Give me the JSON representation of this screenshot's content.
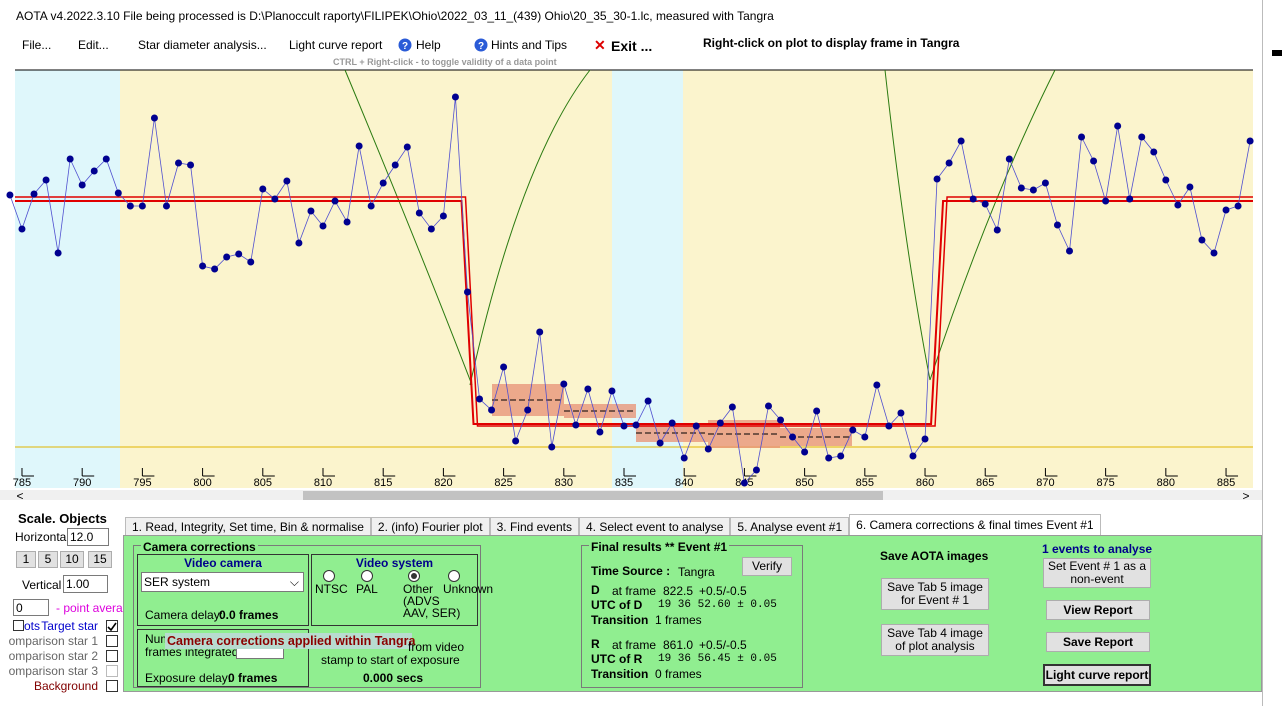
{
  "title_bar": "AOTA v4.2022.3.10   File being processed is D:\\Planoccult raporty\\FILIPEK\\Ohio\\2022_03_11_(439) Ohio\\20_35_30-1.lc, measured with Tangra",
  "menu": [
    "File...",
    "Edit...",
    "Star diameter analysis...",
    "Light curve report",
    "Help",
    "Hints and Tips",
    "Exit ..."
  ],
  "menu_note": "Right-click on plot to display frame in Tangra",
  "hint": "CTRL + Right-click  -  to toggle validity of a data point",
  "plot": {
    "x": [
      784,
      785,
      786,
      787,
      788,
      789,
      790,
      791,
      792,
      793,
      794,
      795,
      796,
      797,
      798,
      799,
      800,
      801,
      802,
      803,
      804,
      805,
      806,
      807,
      808,
      809,
      810,
      811,
      812,
      813,
      814,
      815,
      816,
      817,
      818,
      819,
      820,
      821,
      822,
      823,
      824,
      825,
      826,
      827,
      828,
      829,
      830,
      831,
      832,
      833,
      834,
      835,
      836,
      837,
      838,
      839,
      840,
      841,
      842,
      843,
      844,
      845,
      846,
      847,
      848,
      849,
      850,
      851,
      852,
      853,
      854,
      855,
      856,
      857,
      858,
      859,
      860,
      861,
      862,
      863,
      864,
      865,
      866,
      867,
      868,
      869,
      870,
      871,
      872,
      873,
      874,
      875,
      876,
      877,
      878,
      879,
      880,
      881,
      882,
      883,
      884,
      885,
      886,
      887
    ],
    "values": [
      267,
      233,
      268,
      282,
      209,
      303,
      277,
      291,
      303,
      269,
      256,
      256,
      344,
      256,
      299,
      297,
      196,
      193,
      205,
      208,
      200,
      273,
      263,
      281,
      219,
      251,
      236,
      261,
      240,
      316,
      256,
      279,
      297,
      315,
      249,
      233,
      246,
      365,
      170,
      63,
      52,
      95,
      21,
      52,
      130,
      15,
      78,
      37,
      73,
      30,
      71,
      36,
      37,
      61,
      19,
      39,
      4,
      36,
      13,
      39,
      55,
      -21,
      -8,
      56,
      42,
      25,
      10,
      51,
      4,
      6,
      32,
      25,
      77,
      36,
      49,
      6,
      23,
      283,
      299,
      321,
      263,
      258,
      232,
      303,
      274,
      272,
      279,
      237,
      211,
      325,
      301,
      261,
      336,
      263,
      325,
      310,
      282,
      257,
      275,
      222,
      209,
      252,
      256,
      321
    ],
    "xlim": [
      784.42,
      887.24
    ],
    "ylim": [
      -26,
      392
    ],
    "xticks": [
      785,
      790,
      795,
      800,
      805,
      810,
      815,
      820,
      825,
      830,
      835,
      840,
      845,
      850,
      855,
      860,
      865,
      870,
      875,
      880,
      885
    ],
    "baseline": 261,
    "event_level": 38
  },
  "scale_panel": {
    "heading": "Scale.  Objects",
    "horizontal_label": "Horizontal",
    "horizontal_value": "12.0",
    "buttons": [
      "1",
      "5",
      "10",
      "15"
    ],
    "vertical_label": "Vertical",
    "vertical_value": "1.00",
    "average_value": "0",
    "average_label": "- point average",
    "objects": [
      {
        "prefix": "ots",
        "label": "Target star",
        "checked": true
      },
      {
        "label": "omparison star 1",
        "checked": false
      },
      {
        "label": "omparison star 2",
        "checked": false
      },
      {
        "label": "omparison star 3",
        "checked": false
      },
      {
        "label": "Background",
        "checked": false
      }
    ]
  },
  "tabs": [
    "1. Read, Integrity, Set time, Bin & normalise",
    "2. (info)  Fourier plot",
    "3. Find events",
    "4. Select event to analyse",
    "5. Analyse event #1",
    "6. Camera corrections & final times Event #1"
  ],
  "active_tab": 5,
  "camera": {
    "heading": "Camera corrections",
    "video_camera": "Video camera",
    "camera_select": "SER system",
    "camera_delay_label": "Camera delay:",
    "camera_delay": "0.0 frames",
    "video_system": "Video system",
    "systems": [
      "NTSC",
      "PAL",
      "Other\n(ADVS\nAAV, SER)",
      "Unknown"
    ],
    "selected_system": 2,
    "overlay": "Camera corrections applied within Tangra",
    "num_label": "Num",
    "frames_integrated": "frames integrated",
    "from_video": "from video",
    "stamp_text": "stamp to start of exposure",
    "exposure_delay_label": "Exposure delay:",
    "exposure_delay": "0 frames",
    "secs": "0.000 secs"
  },
  "results": {
    "heading": "Final results  **  Event #1",
    "verify": "Verify",
    "time_source_label": "Time Source :",
    "time_source": "Tangra",
    "d": {
      "label": "D",
      "at_frame": "at frame",
      "frame": {
        "value": 822.5,
        "label": "822.5"
      },
      "uncertainty": "+0.5/-0.5",
      "utc_label": "UTC of D",
      "utc": "19 36 52.60  ± 0.05",
      "transition_label": "Transition",
      "transition": "1 frames"
    },
    "r": {
      "label": "R",
      "at_frame": "at frame",
      "frame": {
        "value": 861,
        "label": "861.0"
      },
      "uncertainty": "+0.5/-0.5",
      "utc_label": "UTC of R",
      "utc": "19 36 56.45  ± 0.05",
      "transition_label": "Transition",
      "transition": "0 frames"
    }
  },
  "save": {
    "heading": "Save AOTA images",
    "tab5": "Save Tab 5 image for Event # 1",
    "tab4": "Save Tab 4 image of plot analysis"
  },
  "events": {
    "heading": "1  events to analyse",
    "non_event": "Set Event # 1 as a non-event",
    "view_report": "View Report",
    "save_report": "Save Report",
    "light_curve_report": "Light curve report"
  }
}
